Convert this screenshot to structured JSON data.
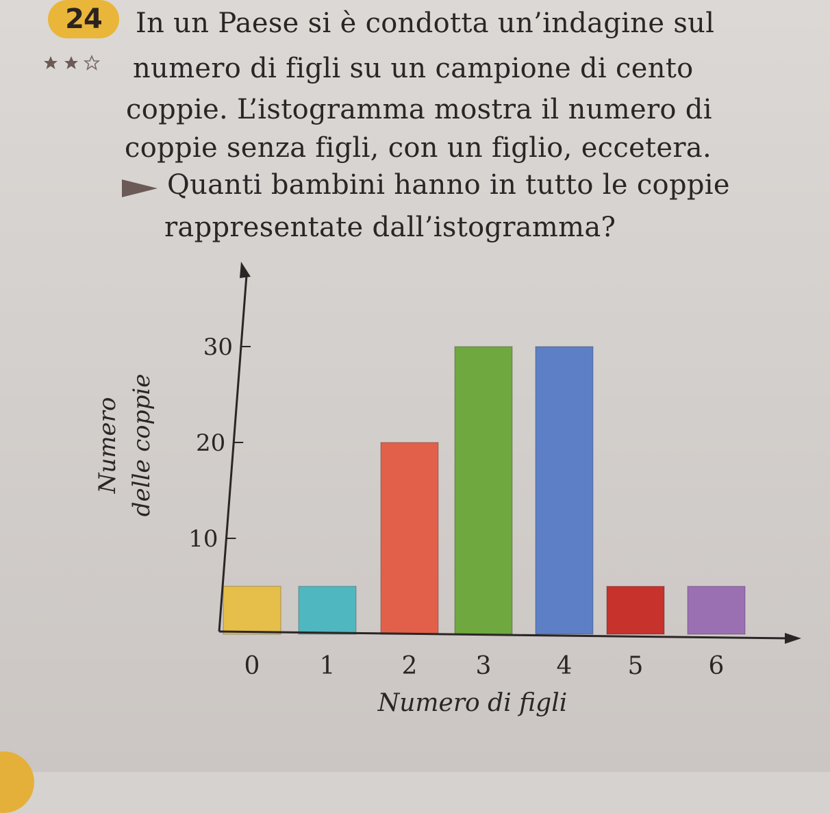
{
  "problem": {
    "number": "24",
    "difficulty_icons": [
      "star-filled-icon",
      "star-filled-icon",
      "star-outline-icon"
    ],
    "text_lines": [
      "In un Paese si è condotta un’indagine sul",
      "numero di figli su un campione di cento",
      "coppie. L’istogramma mostra il numero di",
      "coppie senza figli, con un figlio, eccetera."
    ],
    "question_icon": "triangle-arrow-icon",
    "question_lines": [
      "Quanti bambini hanno in tutto le coppie",
      "rappresentate dall’istogramma?"
    ]
  },
  "colors": {
    "badge": "#e9b63a",
    "axis": "#2a2626"
  },
  "chart_data": {
    "type": "bar",
    "categories": [
      "0",
      "1",
      "2",
      "3",
      "4",
      "5",
      "6"
    ],
    "values": [
      5,
      5,
      20,
      30,
      30,
      5,
      5
    ],
    "bar_colors": [
      "#e6bf4a",
      "#4fb7bf",
      "#e2604a",
      "#6ea83f",
      "#5d7fc5",
      "#c7322d",
      "#9a70b3"
    ],
    "xlabel": "Numero di figli",
    "ylabel_lines": [
      "Numero",
      "delle coppie"
    ],
    "yticks": [
      10,
      20,
      30
    ],
    "ylim": [
      0,
      36
    ],
    "grid": false
  }
}
